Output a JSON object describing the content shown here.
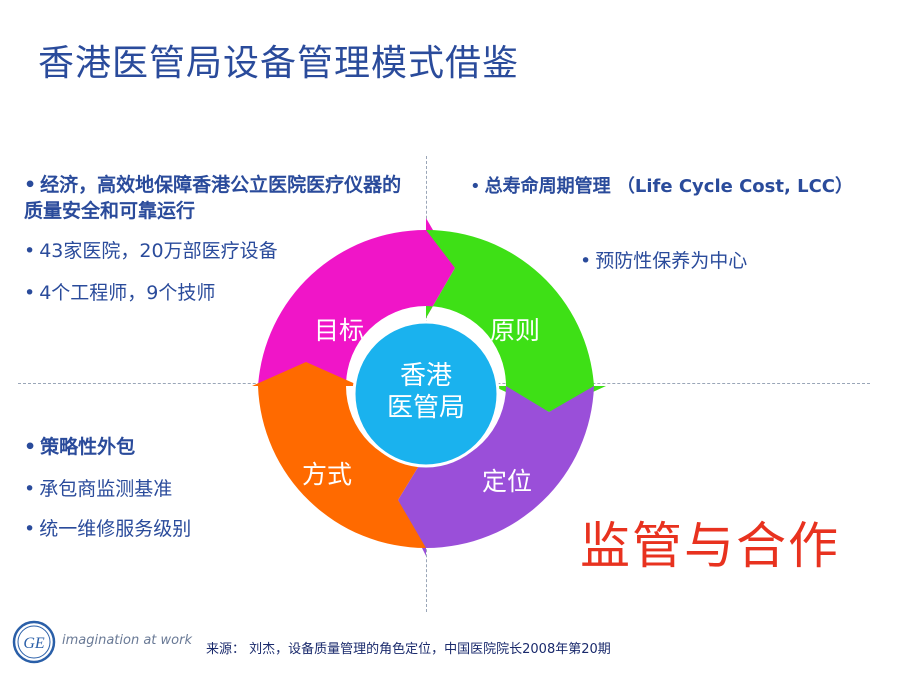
{
  "title": "香港医管局设备管理模式借鉴",
  "top_left": {
    "heading": "经济，高效地保障香港公立医院医疗仪器的质量安全和可靠运行",
    "items": [
      "43家医院，20万部医疗设备",
      "4个工程师，9个技师"
    ]
  },
  "top_right": {
    "heading": "总寿命周期管理 （Life Cycle Cost, LCC）",
    "items": [
      "预防性保养为中心"
    ]
  },
  "bottom_left": {
    "heading": "策略性外包",
    "items": [
      "承包商监测基准",
      "统一维修服务级别"
    ]
  },
  "cycle": {
    "center_line1": "香港",
    "center_line2": "医管局",
    "q1": "目标",
    "q2": "原则",
    "q3": "定位",
    "q4": "方式",
    "colors": {
      "magenta": "#f015c8",
      "green": "#3ee016",
      "purple": "#9a4fd9",
      "orange": "#ff6a00",
      "center": "#1ab2ee"
    }
  },
  "slogan": "监管与合作",
  "bullet_symbol": "•",
  "footer": {
    "source": "来源： 刘杰，设备质量管理的角色定位，中国医院院长2008年第20期",
    "tagline": "imagination at work",
    "logo": "GE"
  }
}
